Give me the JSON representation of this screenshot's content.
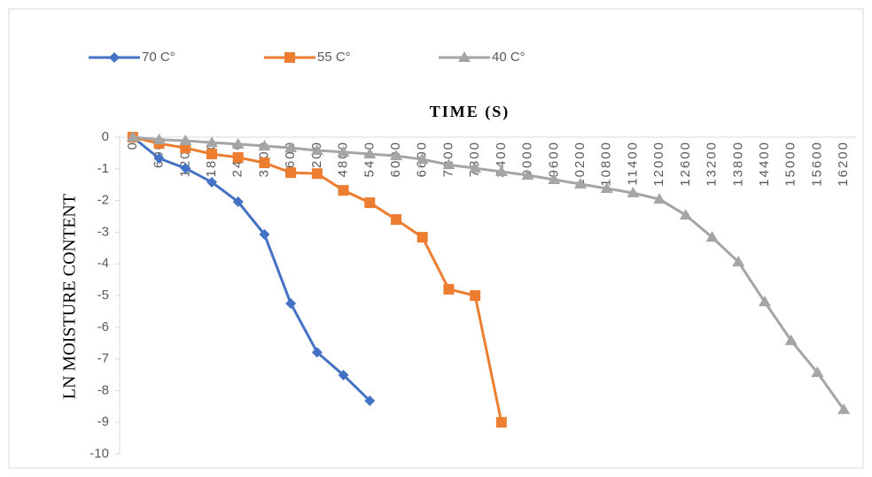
{
  "chart_data": {
    "type": "line",
    "title": "TIME (S)",
    "y_label": "LN MOISTURE CONTENT",
    "categories": [
      "0",
      "600",
      "1200",
      "1800",
      "2400",
      "3000",
      "3600",
      "4200",
      "4800",
      "5400",
      "6000",
      "6600",
      "7200",
      "7800",
      "8400",
      "9000",
      "9600",
      "10200",
      "10800",
      "11400",
      "12000",
      "12600",
      "13200",
      "13800",
      "14400",
      "15000",
      "15600",
      "16200"
    ],
    "series": [
      {
        "name": "70 C°",
        "color": "#4472c4",
        "marker": "diamond",
        "values": [
          0,
          -0.67,
          -0.98,
          -1.42,
          -2.04,
          -3.07,
          -5.25,
          -6.79,
          -7.51,
          -8.32,
          null,
          null,
          null,
          null,
          null,
          null,
          null,
          null,
          null,
          null,
          null,
          null,
          null,
          null,
          null,
          null,
          null,
          null
        ]
      },
      {
        "name": "55 C°",
        "color": "#ed7d31",
        "marker": "square",
        "values": [
          0,
          -0.2,
          -0.34,
          -0.53,
          -0.64,
          -0.81,
          -1.12,
          -1.15,
          -1.68,
          -2.07,
          -2.6,
          -3.16,
          -4.8,
          -5.0,
          -9.0,
          null,
          null,
          null,
          null,
          null,
          null,
          null,
          null,
          null,
          null,
          null,
          null,
          null
        ]
      },
      {
        "name": "40 C°",
        "color": "#a5a5a5",
        "marker": "triangle",
        "values": [
          0,
          -0.08,
          -0.11,
          -0.17,
          -0.22,
          -0.28,
          -0.34,
          -0.42,
          -0.47,
          -0.53,
          -0.59,
          -0.7,
          -0.87,
          -0.98,
          -1.09,
          -1.2,
          -1.34,
          -1.48,
          -1.62,
          -1.76,
          -1.96,
          -2.46,
          -3.16,
          -3.94,
          -5.2,
          -6.42,
          -7.43,
          -8.6
        ]
      }
    ],
    "ylim": [
      -10,
      0
    ],
    "yticks": [
      0,
      -1,
      -2,
      -3,
      -4,
      -5,
      -6,
      -7,
      -8,
      -9,
      -10
    ],
    "grid": false,
    "legend": "top"
  }
}
